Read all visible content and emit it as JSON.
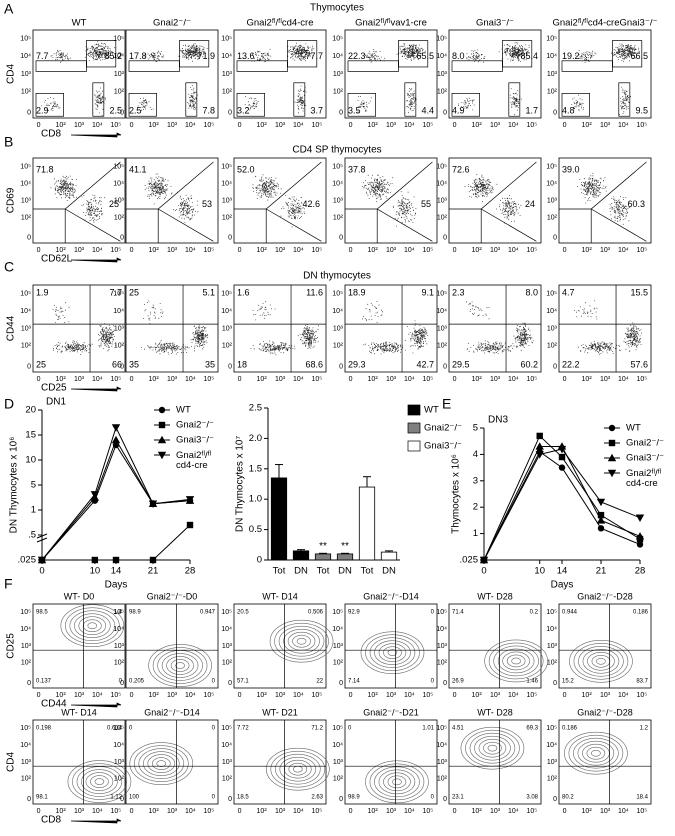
{
  "figure_letters": [
    "A",
    "B",
    "C",
    "D",
    "E",
    "F"
  ],
  "flow_ticks": [
    "0",
    "10²",
    "10³",
    "10⁴",
    "10⁵"
  ],
  "panel_a": {
    "title": "Thymocytes",
    "y_label": "CD4",
    "x_label": "CD8",
    "plots": [
      {
        "title": "WT",
        "tl": "7.7",
        "tr": "85.2",
        "bl": "2.9",
        "br": "2.5"
      },
      {
        "title": "Gnai2⁻/⁻",
        "tl": "17.8",
        "tr": "71.9",
        "bl": "2.5",
        "br": "7.8"
      },
      {
        "title": "Gnai2ᶠˡ/ᶠˡcd4-cre",
        "tl": "13.6",
        "tr": "77.7",
        "bl": "3.2",
        "br": "3.7"
      },
      {
        "title": "Gnai2ᶠˡ/ᶠˡvav1-cre",
        "tl": "22.3",
        "tr": "65.5",
        "bl": "3.5",
        "br": "4.4"
      },
      {
        "title": "Gnai3⁻/⁻",
        "tl": "8.0",
        "tr": "85.4",
        "bl": "4.9",
        "br": "1.7"
      },
      {
        "title": "Gnai2ᶠˡ/ᶠˡcd4-creGnai3⁻/⁻",
        "tl": "19.2",
        "tr": "66.5",
        "bl": "4.8",
        "br": "9.5"
      }
    ]
  },
  "panel_b": {
    "title": "CD4 SP thymocytes",
    "y_label": "CD69",
    "x_label": "CD62L",
    "plots": [
      {
        "tl": "71.8",
        "r": "25"
      },
      {
        "tl": "41.1",
        "r": "53"
      },
      {
        "tl": "52.0",
        "r": "42.6"
      },
      {
        "tl": "37.8",
        "r": "55"
      },
      {
        "tl": "72.6",
        "r": "24"
      },
      {
        "tl": "39.0",
        "r": "60.3"
      }
    ]
  },
  "panel_c": {
    "title": "DN thymocytes",
    "y_label": "CD44",
    "x_label": "CD25",
    "plots": [
      {
        "tl": "1.9",
        "tr": "7.7",
        "bl": "25",
        "br": "66"
      },
      {
        "tl": "25",
        "tr": "5.1",
        "bl": "35",
        "br": "35"
      },
      {
        "tl": "1.6",
        "tr": "11.6",
        "bl": "18",
        "br": "68.6"
      },
      {
        "tl": "18.9",
        "tr": "9.1",
        "bl": "29.3",
        "br": "42.7"
      },
      {
        "tl": "2.3",
        "tr": "8.0",
        "bl": "29.5",
        "br": "60.2"
      },
      {
        "tl": "4.7",
        "tr": "15.5",
        "bl": "22.2",
        "br": "57.6"
      }
    ]
  },
  "panel_f": {
    "rows": [
      {
        "y_label": "CD25",
        "x_label": "CD44",
        "plots": [
          {
            "title": "WT- D0",
            "tl": "98.5",
            "tr": "1.4",
            "bl": "0.137",
            "br": "0"
          },
          {
            "title": "Gnai2⁻/⁻-D0",
            "tl": "98.9",
            "tr": "0.947",
            "bl": "0.205",
            "br": "0"
          },
          {
            "title": "WT- D14",
            "tl": "20.5",
            "tr": "0.506",
            "bl": "57.1",
            "br": "22"
          },
          {
            "title": "Gnai2⁻/⁻-D14",
            "tl": "92.9",
            "tr": "0",
            "bl": "7.14",
            "br": "0"
          },
          {
            "title": "WT- D28",
            "tl": "71.4",
            "tr": "0.2",
            "bl": "26.9",
            "br": "1.46"
          },
          {
            "title": "Gnai2⁻/⁻-D28",
            "tl": "0.944",
            "tr": "0.186",
            "bl": "15.2",
            "br": "83.7"
          }
        ]
      },
      {
        "y_label": "CD4",
        "x_label": "CD8",
        "plots": [
          {
            "title": "WT- D14",
            "tl": "0.198",
            "tr": "0.614",
            "bl": "98.1",
            "br": "1.12"
          },
          {
            "title": "Gnai2⁻/⁻-D14",
            "tl": "0",
            "tr": "0",
            "bl": "100",
            "br": "0"
          },
          {
            "title": "WT- D21",
            "tl": "7.72",
            "tr": "71.2",
            "bl": "18.5",
            "br": "2.63"
          },
          {
            "title": "Gnai2⁻/⁻-D21",
            "tl": "0",
            "tr": "1.01",
            "bl": "98.9",
            "br": "0"
          },
          {
            "title": "WT- D28",
            "tl": "4.51",
            "tr": "69.3",
            "bl": "23.1",
            "br": "3.08"
          },
          {
            "title": "Gnai2⁻/⁻-D28",
            "tl": "0.186",
            "tr": "1.2",
            "bl": "80.2",
            "br": "18.4"
          }
        ]
      }
    ]
  },
  "chart_data": [
    {
      "type": "line",
      "title": "DN1",
      "x_label": "Days",
      "y_label": "DN Thymocytes x 10⁶",
      "x": [
        0,
        10,
        14,
        21,
        28
      ],
      "xlim": [
        0,
        28
      ],
      "xticks": [
        0,
        10,
        14,
        21,
        28
      ],
      "ylim": [
        0.025,
        20
      ],
      "yticks": [
        {
          "value": 0.025,
          "label": ".025"
        },
        {
          "value": 0.5,
          "label": ".5"
        },
        1,
        5,
        10,
        15,
        20
      ],
      "legend": "top-right",
      "series": [
        {
          "name": "WT",
          "marker": "circle",
          "color": "#000000",
          "values": [
            0.025,
            2.5,
            13,
            2,
            2.5
          ]
        },
        {
          "name": "Gnai2⁻/⁻",
          "marker": "square",
          "color": "#000000",
          "values": [
            0.025,
            0.025,
            0.025,
            0.025,
            0.7
          ]
        },
        {
          "name": "Gnai3⁻/⁻",
          "marker": "triangle",
          "color": "#000000",
          "values": [
            0.025,
            3,
            14,
            2,
            2.5
          ]
        },
        {
          "name": "Gnai2ᶠˡ/ᶠˡ cd4-cre",
          "marker": "triangle-down",
          "color": "#000000",
          "values": [
            0.025,
            3.5,
            16.5,
            2,
            2.7
          ]
        }
      ]
    },
    {
      "type": "bar",
      "y_label": "DN Thymocytes x 10⁷",
      "categories": [
        "Tot",
        "DN",
        "Tot",
        "DN",
        "Tot",
        "DN"
      ],
      "ylim": [
        0,
        2.5
      ],
      "yticks": [
        0,
        {
          "value": 0.5,
          "label": "0.5"
        },
        {
          "value": 1,
          "label": "1.0"
        },
        {
          "value": 1.5,
          "label": "1.5"
        },
        {
          "value": 2,
          "label": "2.0"
        },
        {
          "value": 2.5,
          "label": "2.5"
        }
      ],
      "legend": "top-right",
      "series": [
        {
          "name": "WT",
          "color": "#000000",
          "values": [
            1.35,
            0.15,
            null,
            null,
            null,
            null
          ],
          "errors": [
            0.22,
            0.02,
            null,
            null,
            null,
            null
          ]
        },
        {
          "name": "Gnai2⁻/⁻",
          "color": "#808080",
          "values": [
            null,
            null,
            0.1,
            0.1,
            null,
            null
          ],
          "errors": [
            null,
            null,
            0.01,
            0.01,
            null,
            null
          ]
        },
        {
          "name": "Gnai3⁻/⁻",
          "color": "#ffffff",
          "values": [
            null,
            null,
            null,
            null,
            1.2,
            0.13
          ],
          "errors": [
            null,
            null,
            null,
            null,
            0.17,
            0.02
          ]
        }
      ],
      "annotations": [
        {
          "text": "**",
          "series": 1,
          "index": 2
        },
        {
          "text": "**",
          "series": 1,
          "index": 3
        }
      ]
    },
    {
      "type": "line",
      "title": "DN3",
      "x_label": "Days",
      "y_label": "Thymocytes x 10⁶",
      "x": [
        0,
        10,
        14,
        21,
        28
      ],
      "xlim": [
        0,
        28
      ],
      "xticks": [
        0,
        10,
        14,
        21,
        28
      ],
      "ylim": [
        0.025,
        5
      ],
      "yticks": [
        {
          "value": 0.025,
          "label": ".025"
        },
        1,
        2,
        3,
        4,
        5
      ],
      "legend": "top-right",
      "series": [
        {
          "name": "WT",
          "marker": "circle",
          "color": "#000000",
          "values": [
            0.025,
            4.1,
            3.5,
            1.2,
            0.6
          ]
        },
        {
          "name": "Gnai2⁻/⁻",
          "marker": "square",
          "color": "#000000",
          "values": [
            0.025,
            4.7,
            3.9,
            1.7,
            0.8
          ]
        },
        {
          "name": "Gnai3⁻/⁻",
          "marker": "triangle",
          "color": "#000000",
          "values": [
            0.025,
            4.3,
            4.3,
            1.5,
            0.9
          ]
        },
        {
          "name": "Gnai2ᶠˡ/ᶠˡ cd4-cre",
          "marker": "triangle-down",
          "color": "#000000",
          "values": [
            0.025,
            4.0,
            4.2,
            2.2,
            1.6
          ]
        }
      ]
    }
  ]
}
